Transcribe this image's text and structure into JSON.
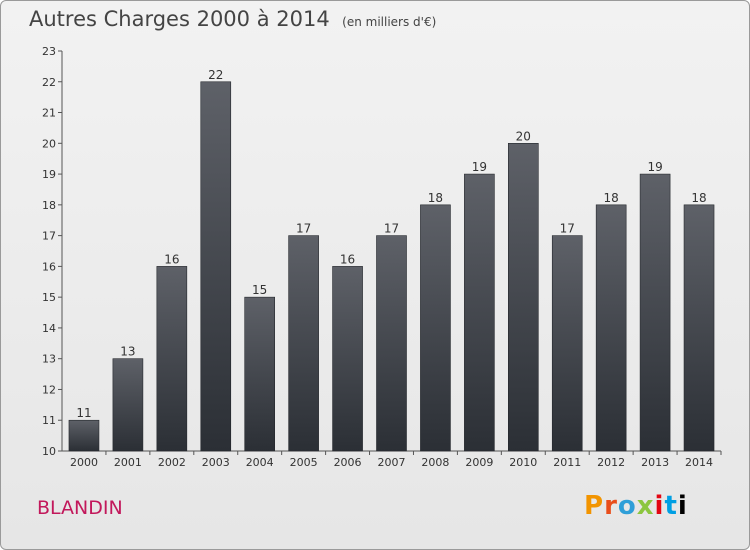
{
  "header": {
    "title": "Autres Charges 2000 à 2014",
    "subtitle": "(en milliers d'€)"
  },
  "location": "BLANDIN",
  "brand": {
    "letters": [
      "P",
      "r",
      "o",
      "x",
      "i",
      "t",
      "i"
    ]
  },
  "colors": {
    "bar_top": "#5e6168",
    "bar_bottom": "#2b2f35",
    "location_text": "#c2185b"
  },
  "chart_data": {
    "type": "bar",
    "title": "Autres Charges 2000 à 2014",
    "subtitle": "(en milliers d'€)",
    "xlabel": "",
    "ylabel": "",
    "categories": [
      "2000",
      "2001",
      "2002",
      "2003",
      "2004",
      "2005",
      "2006",
      "2007",
      "2008",
      "2009",
      "2010",
      "2011",
      "2012",
      "2013",
      "2014"
    ],
    "values": [
      11,
      13,
      16,
      22,
      15,
      17,
      16,
      17,
      18,
      19,
      20,
      17,
      18,
      19,
      18
    ],
    "ylim": [
      10,
      23
    ],
    "yticks": [
      10,
      11,
      12,
      13,
      14,
      15,
      16,
      17,
      18,
      19,
      20,
      21,
      22,
      23
    ],
    "grid": false,
    "legend": "none"
  }
}
